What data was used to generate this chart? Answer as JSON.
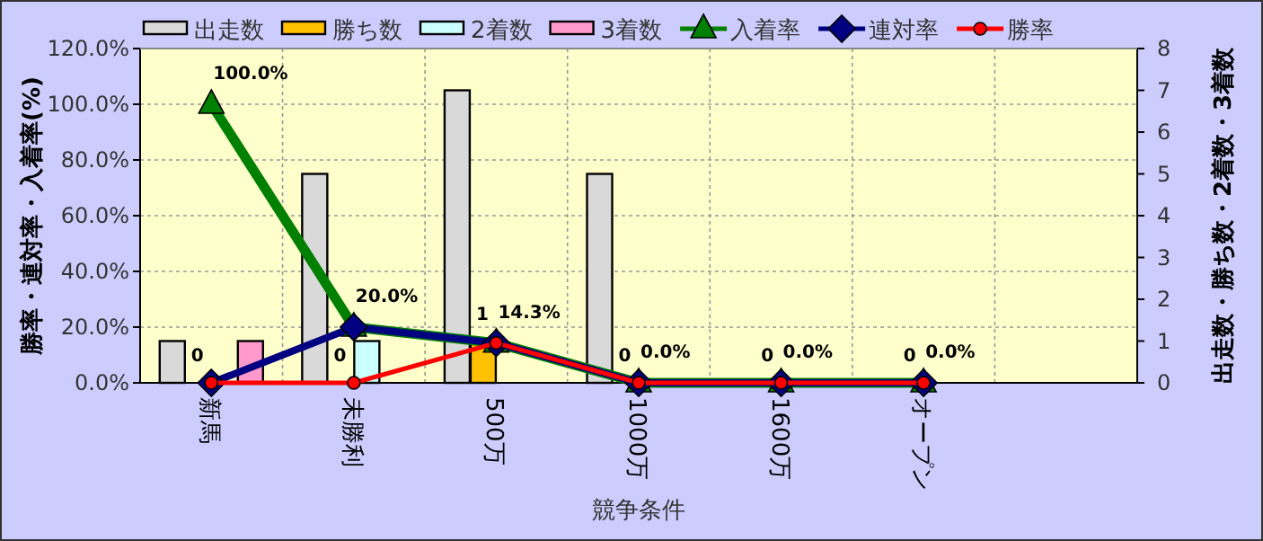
{
  "chart_data": {
    "type": "bar",
    "xlabel": "競争条件",
    "ylabel": "勝率・連対率・入着率(%)",
    "y2label": "出走数・勝ち数・2着数・3着数",
    "categories": [
      "新馬",
      "未勝利",
      "500万",
      "1000万",
      "1600万",
      "オープン",
      null
    ],
    "series": [
      {
        "name": "出走数",
        "axis": "y2",
        "color": "#d9d9d9",
        "values": [
          1,
          5,
          7,
          5,
          0,
          0,
          null
        ]
      },
      {
        "name": "勝ち数",
        "axis": "y2",
        "color": "#ffc000",
        "values": [
          0,
          0,
          1,
          0,
          0,
          0,
          null
        ],
        "value_labels": [
          "0",
          "0",
          "1",
          "0",
          "0",
          "0",
          null
        ]
      },
      {
        "name": "2着数",
        "axis": "y2",
        "color": "#ccffff",
        "values": [
          0,
          1,
          0,
          0,
          0,
          0,
          null
        ]
      },
      {
        "name": "3着数",
        "axis": "y2",
        "color": "#ff99cc",
        "values": [
          1,
          0,
          0,
          0,
          0,
          0,
          null
        ]
      },
      {
        "name": "入着率",
        "type": "line",
        "marker": "triangle",
        "color": "#008000",
        "values": [
          100,
          20,
          14.3,
          0,
          0,
          0,
          null
        ],
        "value_labels": [
          "100.0%",
          "20.0%",
          "14.3%",
          "0.0%",
          "0.0%",
          "0.0%",
          null
        ]
      },
      {
        "name": "連対率",
        "type": "line",
        "marker": "diamond",
        "color": "#000080",
        "values": [
          0,
          20,
          14.3,
          0,
          0,
          0,
          null
        ]
      },
      {
        "name": "勝率",
        "type": "line",
        "marker": "circle",
        "color": "#ff0000",
        "values": [
          0,
          0,
          14.3,
          0,
          0,
          0,
          null
        ]
      }
    ],
    "ylim": [
      0,
      120
    ],
    "yticks": [
      {
        "value": 0,
        "label": "0.0%"
      },
      {
        "value": 20,
        "label": "20.0%"
      },
      {
        "value": 40,
        "label": "40.0%"
      },
      {
        "value": 60,
        "label": "60.0%"
      },
      {
        "value": 80,
        "label": "80.0%"
      },
      {
        "value": 100,
        "label": "100.0%"
      },
      {
        "value": 120,
        "label": "120.0%"
      }
    ],
    "y2lim": [
      0,
      8
    ],
    "y2ticks": [
      0,
      1,
      2,
      3,
      4,
      5,
      6,
      7,
      8
    ],
    "grid": true,
    "legend": "top",
    "line_style": "solid"
  }
}
